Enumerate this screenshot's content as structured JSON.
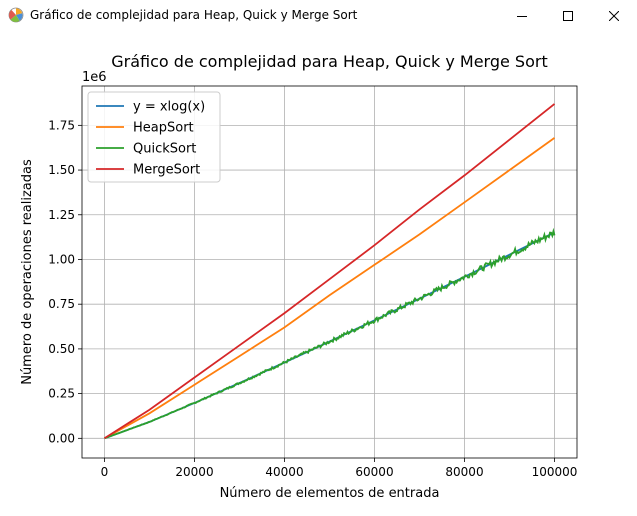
{
  "window": {
    "title": "Gráfico de complejidad para Heap, Quick y Merge Sort",
    "app_icon": "matplotlib-icon",
    "controls": [
      "minimize-icon",
      "maximize-icon",
      "close-icon"
    ]
  },
  "chart_data": {
    "type": "line",
    "title": "Gráfico de complejidad para Heap, Quick y Merge Sort",
    "xlabel": "Número de elementos de entrada",
    "ylabel": "Número de operaciones realizadas",
    "y_offset_label": "1e6",
    "xlim": [
      -5000,
      105000
    ],
    "ylim": [
      -110000,
      1970000
    ],
    "xticks": [
      0,
      20000,
      40000,
      60000,
      80000,
      100000
    ],
    "xtick_labels": [
      "0",
      "20000",
      "40000",
      "60000",
      "80000",
      "100000"
    ],
    "yticks": [
      0,
      250000,
      500000,
      750000,
      1000000,
      1250000,
      1500000,
      1750000
    ],
    "ytick_labels": [
      "0.00",
      "0.25",
      "0.50",
      "0.75",
      "1.00",
      "1.25",
      "1.50",
      "1.75"
    ],
    "grid": true,
    "legend_position": "upper-left",
    "x": [
      0,
      10000,
      20000,
      30000,
      40000,
      50000,
      60000,
      70000,
      80000,
      90000,
      100000
    ],
    "series": [
      {
        "name": "y = xlog(x)",
        "color": "#1f77b4",
        "values": [
          0,
          92103,
          198070,
          309272,
          423865,
          540988,
          660060,
          780935,
          903236,
          1026980,
          1151293
        ]
      },
      {
        "name": "HeapSort",
        "color": "#ff7f0e",
        "values": [
          0,
          140000,
          300000,
          460000,
          620000,
          800000,
          970000,
          1140000,
          1320000,
          1500000,
          1680000
        ]
      },
      {
        "name": "QuickSort",
        "color": "#2ca02c",
        "noisy": true,
        "values": [
          0,
          92103,
          198070,
          309272,
          423865,
          540988,
          660060,
          780935,
          903236,
          1026980,
          1151293
        ]
      },
      {
        "name": "MergeSort",
        "color": "#d62728",
        "values": [
          0,
          160000,
          340000,
          520000,
          700000,
          890000,
          1080000,
          1280000,
          1470000,
          1670000,
          1870000
        ]
      }
    ]
  }
}
